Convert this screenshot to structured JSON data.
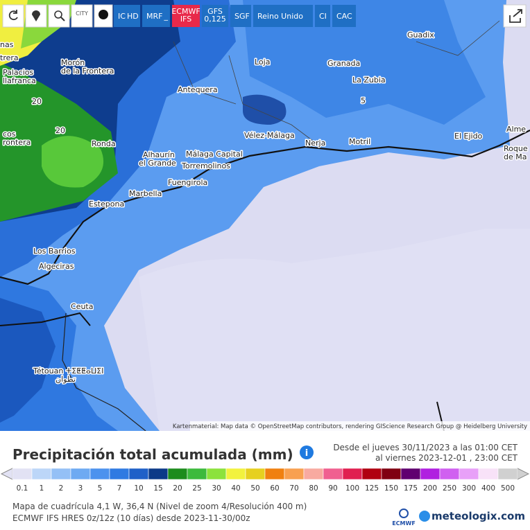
{
  "toolbar": {
    "city": "CITY",
    "models": [
      {
        "name": "IC",
        "sub": "HD"
      },
      {
        "name": "MRF",
        "sub": "_"
      },
      {
        "name": "ECMWF",
        "sub": "IFS"
      },
      {
        "name": "GFS",
        "sub": "0,125"
      },
      {
        "name": "SGF"
      },
      {
        "name": "Reino Unido"
      },
      {
        "name": "CI"
      },
      {
        "name": "CAC"
      }
    ]
  },
  "map": {
    "labels": [
      "nas",
      "trera",
      "Palacios",
      "llafranca",
      "Morón",
      "de la Frontera",
      "20",
      "20",
      "cos",
      "rontera",
      "Ronda",
      "Antequera",
      "Loja",
      "Granada",
      "La Zubia",
      "5",
      "Guadix",
      "Vélez-Málaga",
      "Nerja",
      "Motril",
      "El Ejido",
      "Alme",
      "Roque",
      "de Ma",
      "Alhaurín",
      "el Grande",
      "Málaga Capital",
      "Torremolinos",
      "Fuengirola",
      "Marbella",
      "Estepona",
      "Los Barrios",
      "Algeciras",
      "Ceuta",
      "Tétouan ⵜⵉⵟⵟⴰⵡⵉⵏ",
      "تطوان"
    ],
    "attribution": "Kartenmaterial: Map data © OpenStreetMap contributors, rendering GIScience Research Group @ Heidelberg University"
  },
  "panel": {
    "title": "Precipitación total acumulada (mm)",
    "period_from": "Desde el jueves 30/11/2023 a  las 01:00 CET",
    "period_to": "al viernes 2023-12-01 ,  23:00 CET",
    "legend": [
      {
        "label": "0.1",
        "color": "#e2e2f4"
      },
      {
        "label": "1",
        "color": "#bcd6f8"
      },
      {
        "label": "2",
        "color": "#94c0f6"
      },
      {
        "label": "3",
        "color": "#6eaaf2"
      },
      {
        "label": "5",
        "color": "#4c92ee"
      },
      {
        "label": "7",
        "color": "#2f7ae2"
      },
      {
        "label": "10",
        "color": "#1f60c8"
      },
      {
        "label": "15",
        "color": "#0c3a88"
      },
      {
        "label": "20",
        "color": "#1c8c1c"
      },
      {
        "label": "25",
        "color": "#3cba3c"
      },
      {
        "label": "30",
        "color": "#8ce23c"
      },
      {
        "label": "40",
        "color": "#f2f23e"
      },
      {
        "label": "50",
        "color": "#e6d020"
      },
      {
        "label": "60",
        "color": "#f08010"
      },
      {
        "label": "70",
        "color": "#f8a050"
      },
      {
        "label": "80",
        "color": "#f8aaa0"
      },
      {
        "label": "90",
        "color": "#f06090"
      },
      {
        "label": "100",
        "color": "#e02050"
      },
      {
        "label": "125",
        "color": "#b00010"
      },
      {
        "label": "150",
        "color": "#800012"
      },
      {
        "label": "175",
        "color": "#600070"
      },
      {
        "label": "200",
        "color": "#b020e0"
      },
      {
        "label": "250",
        "color": "#d060f0"
      },
      {
        "label": "300",
        "color": "#e8a0f8"
      },
      {
        "label": "400",
        "color": "#f8e2f8"
      },
      {
        "label": "500",
        "color": "#d0d0d0"
      }
    ],
    "footnote_1": "Mapa de cuadrícula 4,1 W, 36,4 N (Nivel de zoom 4/Resolución 400 m)",
    "footnote_2": "ECMWF IFS HRES 0z/12z (10 días) desde 2023-11-30/00z",
    "logo_ecmwf": "ECMWF",
    "logo_site": "meteologix.com"
  }
}
